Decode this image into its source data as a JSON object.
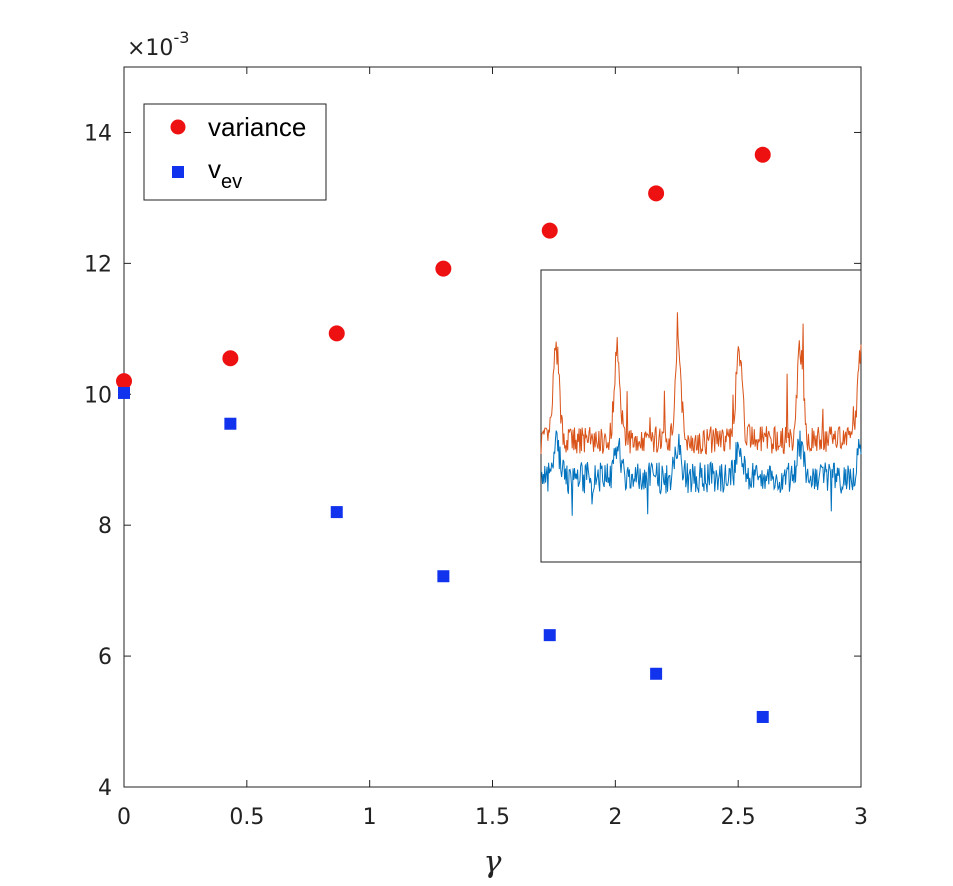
{
  "chart_data": {
    "type": "scatter",
    "title": "",
    "xlabel": "γ",
    "ylabel": "",
    "xlim": [
      0,
      3
    ],
    "ylim": [
      4,
      15
    ],
    "exponent_label": {
      "base": "×10",
      "power": "-3"
    },
    "x_ticks": [
      0,
      0.5,
      1,
      1.5,
      2,
      2.5,
      3
    ],
    "x_tick_labels": [
      "0",
      "0.5",
      "1",
      "1.5",
      "2",
      "2.5",
      "3"
    ],
    "y_ticks": [
      4,
      6,
      8,
      10,
      12,
      14
    ],
    "y_tick_labels": [
      "4",
      "6",
      "8",
      "10",
      "12",
      "14"
    ],
    "legend_position": "top-left",
    "series": [
      {
        "name": "variance",
        "marker": "circle",
        "color": "#ee1111",
        "x": [
          0,
          0.433,
          0.866,
          1.3,
          1.733,
          2.166,
          2.6
        ],
        "y": [
          10.2,
          10.55,
          10.93,
          11.92,
          12.5,
          13.07,
          13.66
        ]
      },
      {
        "name": "v",
        "name_subscript": "ev",
        "marker": "square",
        "color": "#1133ee",
        "x": [
          0,
          0.433,
          0.866,
          1.3,
          1.733,
          2.166,
          2.6
        ],
        "y": [
          10.02,
          9.55,
          8.2,
          7.22,
          6.32,
          5.73,
          5.07
        ]
      }
    ],
    "inset": {
      "type": "line",
      "position": "right-middle",
      "series": [
        {
          "name": "orange-trace",
          "color": "#d95319"
        },
        {
          "name": "blue-trace",
          "color": "#0072bd"
        }
      ]
    }
  }
}
